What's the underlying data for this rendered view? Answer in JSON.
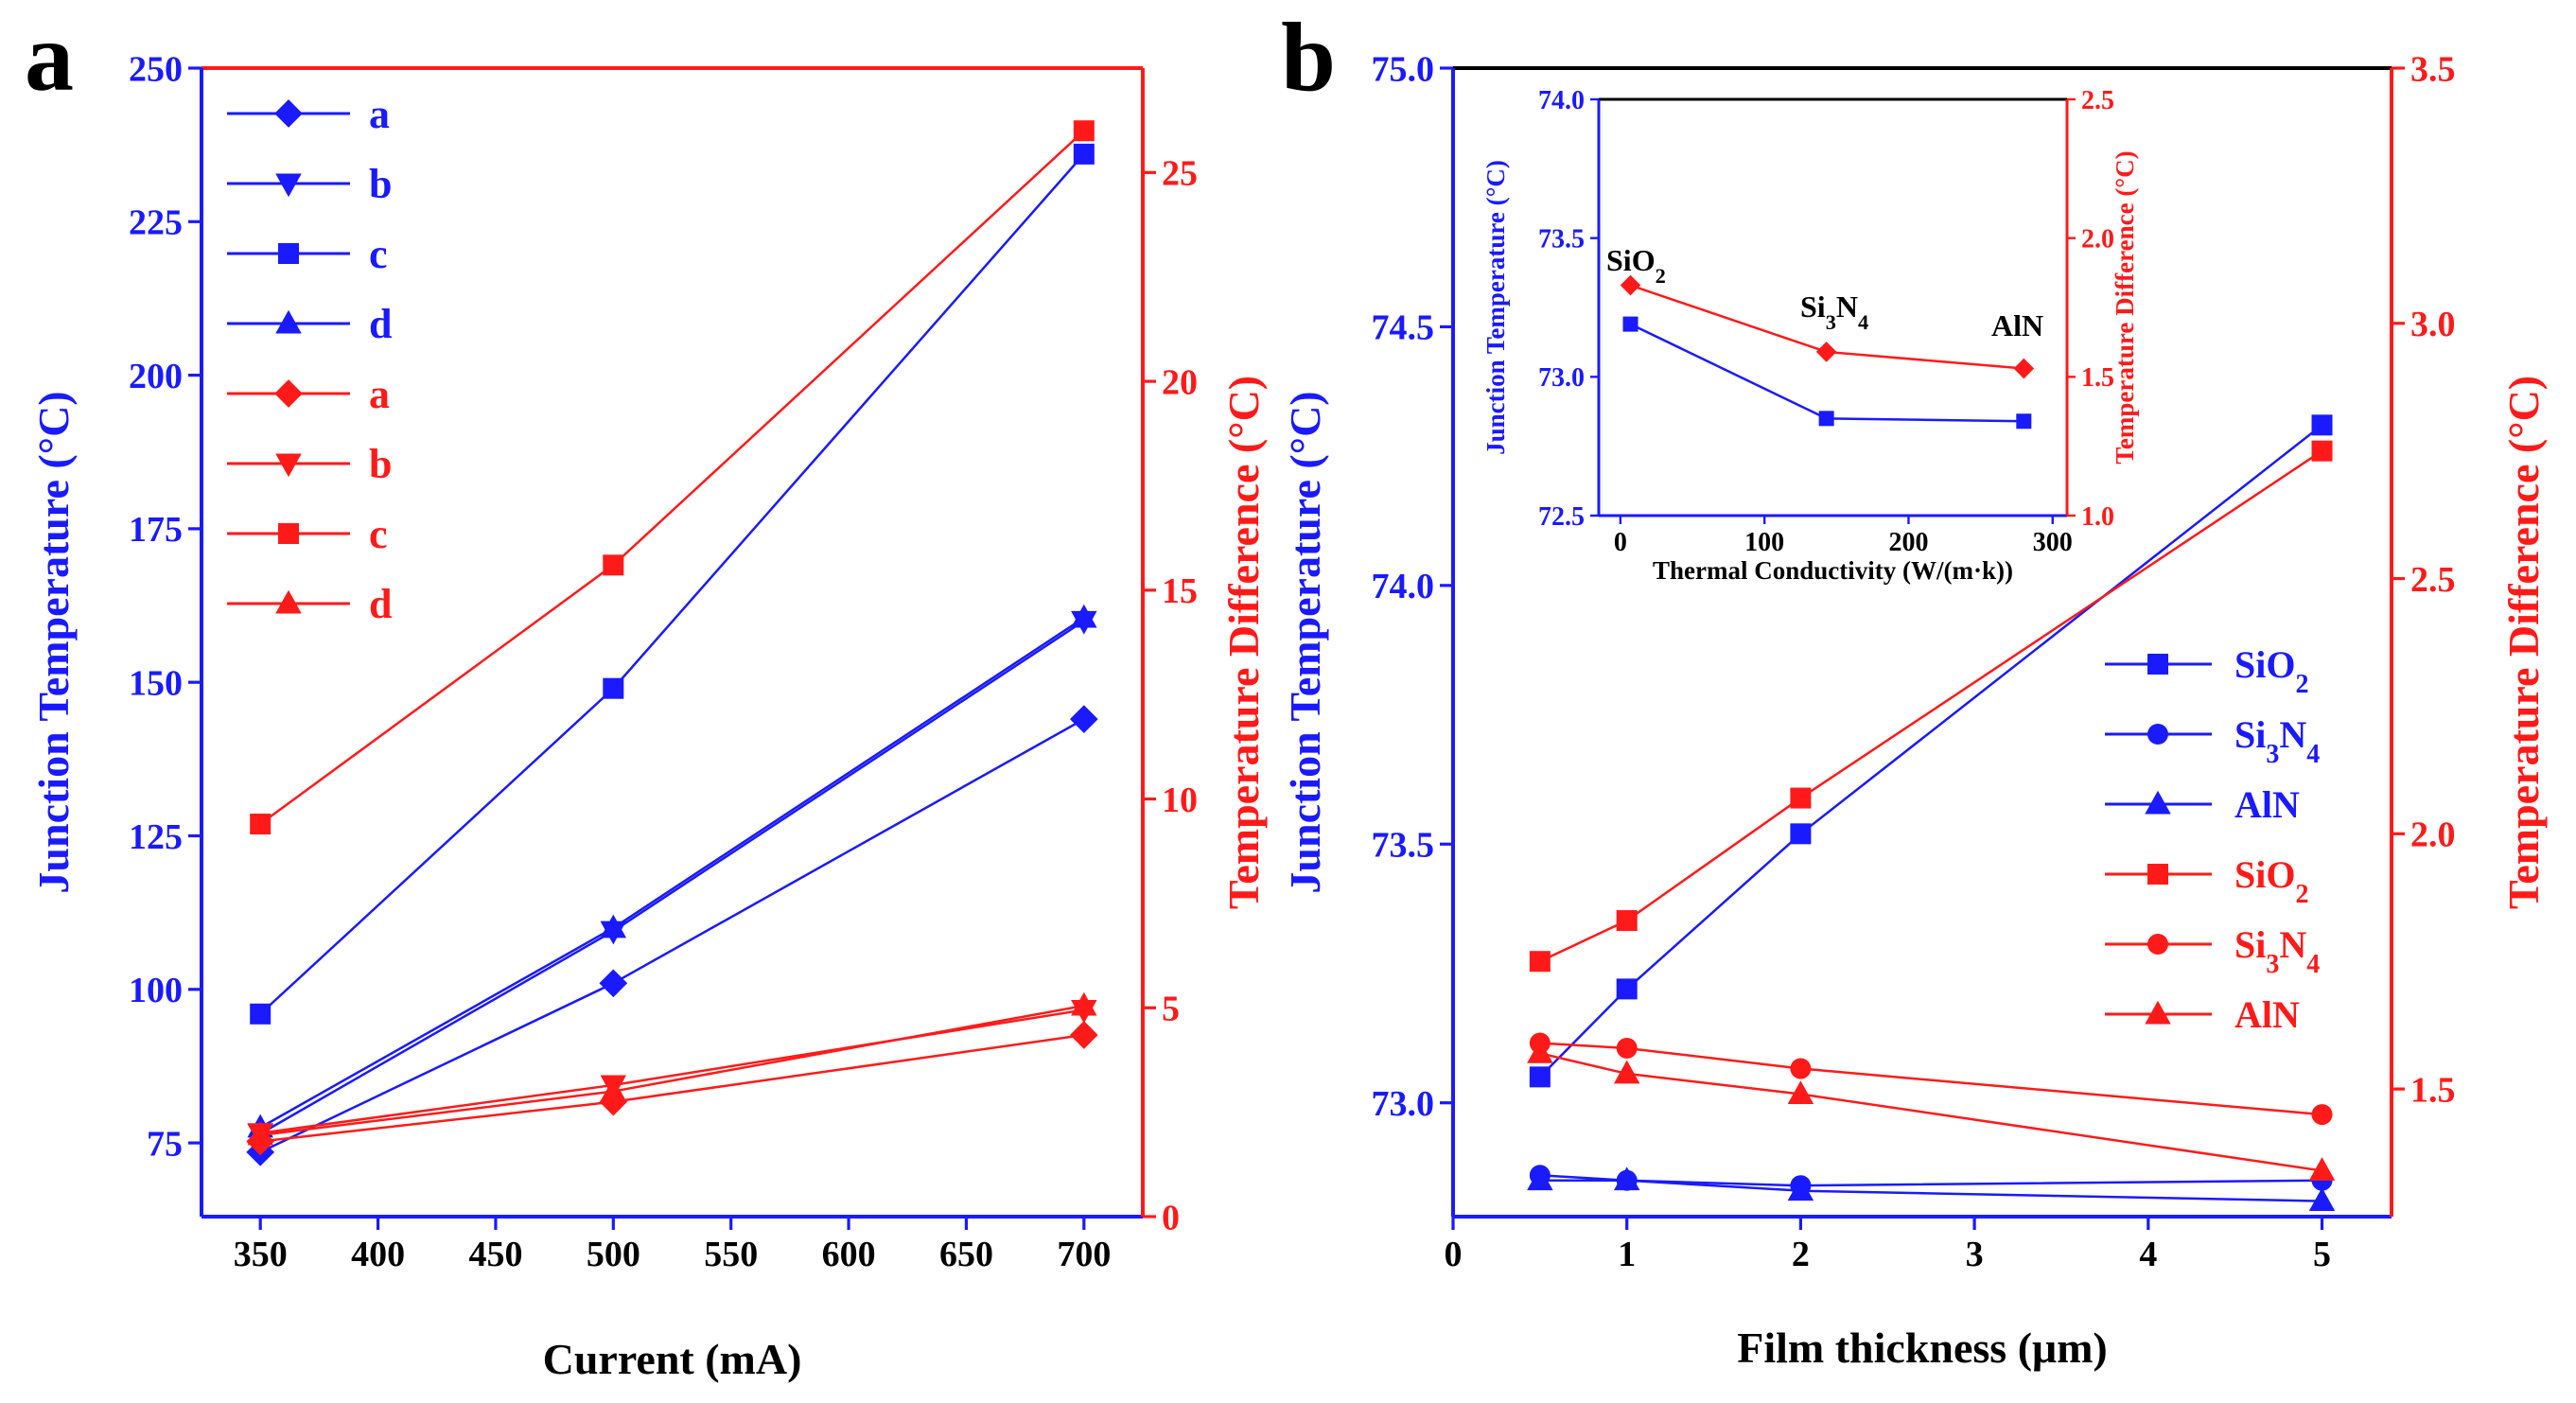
{
  "colors": {
    "blue": "#1a1aff",
    "red": "#ff1a1a",
    "black": "#000000"
  },
  "panel_labels": {
    "a": "a",
    "b": "b"
  },
  "chart_data": [
    {
      "id": "a",
      "type": "line",
      "xlabel": "Current (mA)",
      "ylabel_left": "Junction Temperature (°C)",
      "ylabel_right": "Temperature Difference (°C)",
      "xlim": [
        325,
        725
      ],
      "ylim_left": [
        63,
        250
      ],
      "ylim_right": [
        0,
        27.5
      ],
      "xticks": [
        350,
        400,
        450,
        500,
        550,
        600,
        650,
        700
      ],
      "xtick_labels": [
        "350",
        "400",
        "450",
        "500",
        "550",
        "600",
        "650",
        "700"
      ],
      "yticks_left": [
        75,
        100,
        125,
        150,
        175,
        200,
        225,
        250
      ],
      "ytick_labels_left": [
        "75",
        "100",
        "125",
        "150",
        "175",
        "200",
        "225",
        "250"
      ],
      "yticks_right": [
        0,
        5,
        10,
        15,
        20,
        25
      ],
      "ytick_labels_right": [
        "0",
        "5",
        "10",
        "15",
        "20",
        "25"
      ],
      "legend_position": "top-left",
      "x": [
        350,
        500,
        700
      ],
      "series": [
        {
          "name": "a",
          "axis": "left",
          "color": "blue",
          "marker": "diamond",
          "values": [
            73.5,
            101,
            144
          ]
        },
        {
          "name": "b",
          "axis": "left",
          "color": "blue",
          "marker": "triangle-down",
          "values": [
            76.5,
            109.5,
            160
          ]
        },
        {
          "name": "c",
          "axis": "left",
          "color": "blue",
          "marker": "square",
          "values": [
            96,
            149,
            236
          ]
        },
        {
          "name": "d",
          "axis": "left",
          "color": "blue",
          "marker": "triangle-up",
          "values": [
            77.5,
            110,
            160.5
          ]
        },
        {
          "name": "a",
          "axis": "right",
          "color": "red",
          "marker": "diamond",
          "values": [
            1.8,
            2.75,
            4.35
          ]
        },
        {
          "name": "b",
          "axis": "right",
          "color": "red",
          "marker": "triangle-down",
          "values": [
            2.0,
            3.15,
            4.95
          ]
        },
        {
          "name": "c",
          "axis": "right",
          "color": "red",
          "marker": "square",
          "values": [
            9.4,
            15.6,
            26.0
          ]
        },
        {
          "name": "d",
          "axis": "right",
          "color": "red",
          "marker": "triangle-up",
          "values": [
            1.95,
            3.0,
            5.05
          ]
        }
      ]
    },
    {
      "id": "b",
      "type": "line",
      "xlabel": "Film thickness (μm)",
      "ylabel_left": "Junction Temperature (°C)",
      "ylabel_right": "Temperature Difference (°C)",
      "xlim": [
        0,
        5.4
      ],
      "ylim_left": [
        72.78,
        75.0
      ],
      "ylim_right": [
        1.25,
        3.5
      ],
      "xticks": [
        0,
        1,
        2,
        3,
        4,
        5
      ],
      "xtick_labels": [
        "0",
        "1",
        "2",
        "3",
        "4",
        "5"
      ],
      "yticks_left": [
        73.0,
        73.5,
        74.0,
        74.5,
        75.0
      ],
      "ytick_labels_left": [
        "73.0",
        "73.5",
        "74.0",
        "74.5",
        "75.0"
      ],
      "yticks_right": [
        1.5,
        2.0,
        2.5,
        3.0,
        3.5
      ],
      "ytick_labels_right": [
        "1.5",
        "2.0",
        "2.5",
        "3.0",
        "3.5"
      ],
      "legend_position": "center-right",
      "x": [
        0.5,
        1,
        2,
        5
      ],
      "series": [
        {
          "name": "SiO",
          "sub": "2",
          "label": "SiO₂",
          "axis": "left",
          "color": "blue",
          "marker": "square",
          "values": [
            73.05,
            73.22,
            73.52,
            74.31
          ]
        },
        {
          "name": "Si",
          "sub": "3",
          "name2": "N",
          "sub2": "4",
          "label": "Si₃N₄",
          "axis": "left",
          "color": "blue",
          "marker": "circle",
          "values": [
            72.86,
            72.85,
            72.84,
            72.85
          ]
        },
        {
          "name": "AlN",
          "label": "AlN",
          "axis": "left",
          "color": "blue",
          "marker": "triangle-up",
          "values": [
            72.85,
            72.85,
            72.83,
            72.81
          ]
        },
        {
          "name": "SiO",
          "sub": "2",
          "label": "SiO₂",
          "axis": "right",
          "color": "red",
          "marker": "square",
          "values": [
            1.75,
            1.83,
            2.07,
            2.75
          ]
        },
        {
          "name": "Si",
          "sub": "3",
          "name2": "N",
          "sub2": "4",
          "label": "Si₃N₄",
          "axis": "right",
          "color": "red",
          "marker": "circle",
          "values": [
            1.59,
            1.58,
            1.54,
            1.45
          ]
        },
        {
          "name": "AlN",
          "label": "AlN",
          "axis": "right",
          "color": "red",
          "marker": "triangle-up",
          "values": [
            1.57,
            1.53,
            1.49,
            1.34
          ]
        }
      ]
    },
    {
      "id": "b-inset",
      "type": "line",
      "xlabel": "Thermal Conductivity (W/(m·k))",
      "ylabel_left": "Junction Temperature (°C)",
      "ylabel_right": "Temperature Difference (°C)",
      "xlim": [
        -15,
        310
      ],
      "ylim_left": [
        72.5,
        74.0
      ],
      "ylim_right": [
        1.0,
        2.5
      ],
      "xticks": [
        0,
        100,
        200,
        300
      ],
      "xtick_labels": [
        "0",
        "100",
        "200",
        "300"
      ],
      "yticks_left": [
        72.5,
        73.0,
        73.5,
        74.0
      ],
      "ytick_labels_left": [
        "72.5",
        "73.0",
        "73.5",
        "74.0"
      ],
      "yticks_right": [
        1.0,
        1.5,
        2.0,
        2.5
      ],
      "ytick_labels_right": [
        "1.0",
        "1.5",
        "2.0",
        "2.5"
      ],
      "x": [
        7,
        143,
        280
      ],
      "annotations": [
        {
          "main": "SiO",
          "sub": "2"
        },
        {
          "main": "Si",
          "sub": "3",
          "main2": "N",
          "sub2": "4"
        },
        {
          "main": "AlN"
        }
      ],
      "series": [
        {
          "name": "Junction Temperature",
          "axis": "left",
          "color": "blue",
          "marker": "square",
          "values": [
            73.19,
            72.85,
            72.84
          ]
        },
        {
          "name": "Temperature Difference",
          "axis": "right",
          "color": "red",
          "marker": "diamond",
          "values": [
            1.83,
            1.59,
            1.53
          ]
        }
      ]
    }
  ]
}
